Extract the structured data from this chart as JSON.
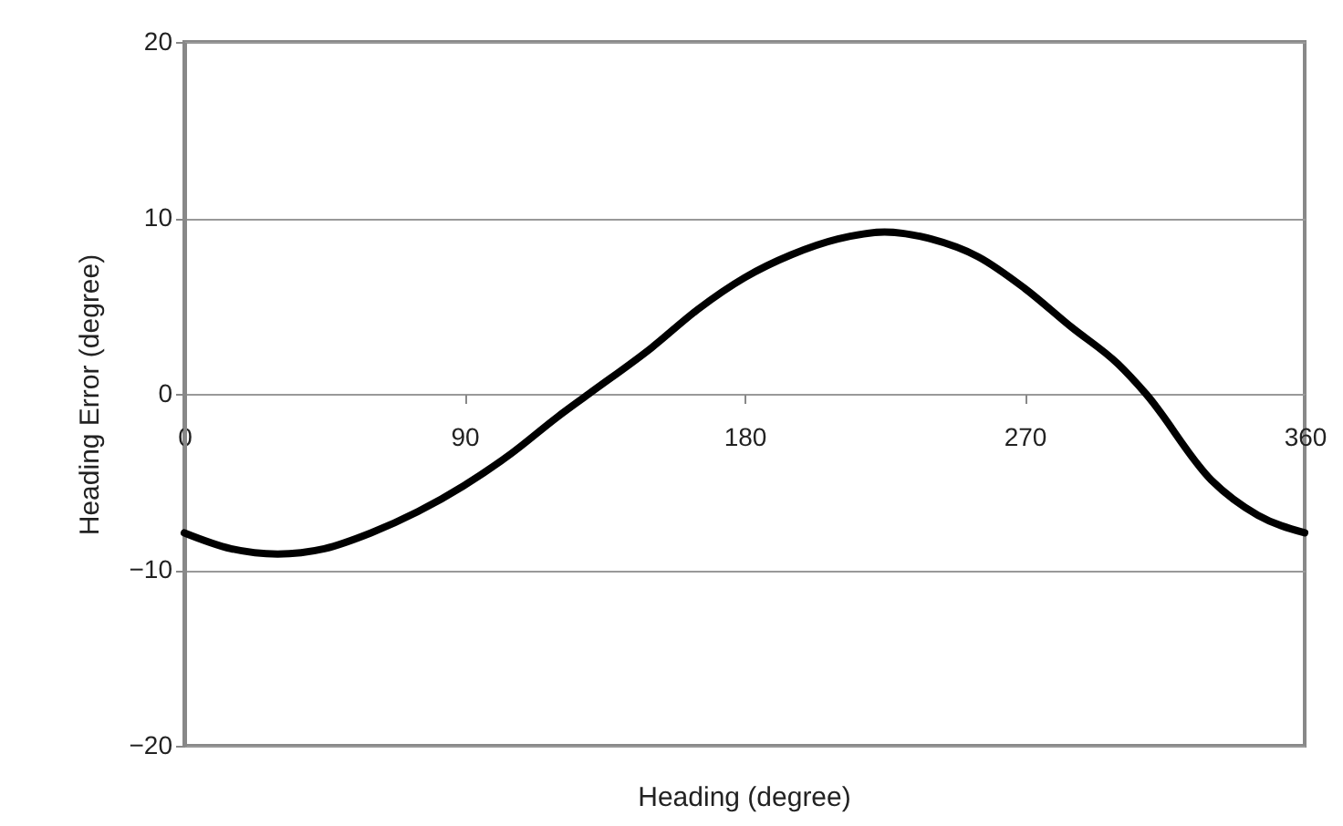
{
  "chart_data": {
    "type": "line",
    "xlabel": "Heading (degree)",
    "ylabel": "Heading Error (degree)",
    "x": [
      0,
      15,
      30,
      45,
      60,
      75,
      90,
      105,
      120,
      130,
      150,
      165,
      180,
      195,
      210,
      225,
      240,
      255,
      270,
      285,
      300,
      309,
      330,
      345,
      360
    ],
    "series": [
      {
        "color": "#000000",
        "values": [
          -7.9,
          -8.8,
          -9.1,
          -8.8,
          -7.9,
          -6.7,
          -5.2,
          -3.4,
          -1.3,
          0,
          2.6,
          4.8,
          6.6,
          7.9,
          8.8,
          9.2,
          8.8,
          7.8,
          6.0,
          3.8,
          1.7,
          0,
          -4.9,
          -6.9,
          -7.9
        ]
      }
    ],
    "xlim": [
      0,
      360
    ],
    "xticks": [
      0,
      90,
      180,
      270,
      360
    ],
    "ylim": [
      -20,
      20
    ],
    "yticks": [
      -20,
      -10,
      0,
      10,
      20
    ],
    "grid": "y",
    "marker": "none",
    "line_style": "solid"
  }
}
